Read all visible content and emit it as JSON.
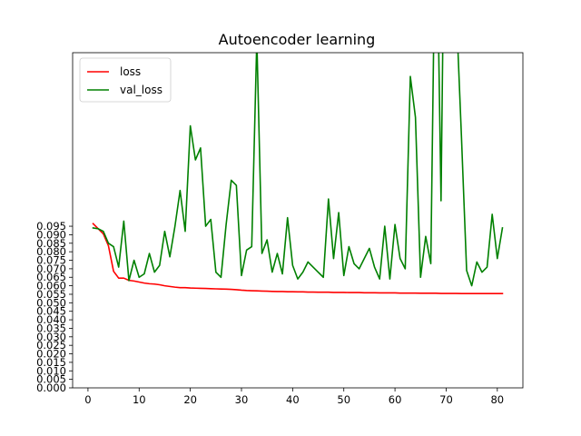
{
  "chart_data": {
    "type": "line",
    "title": "Autoencoder learning",
    "xlabel": "",
    "ylabel": "",
    "xlim": [
      -3,
      85
    ],
    "ylim": [
      0.0,
      0.197
    ],
    "x_ticks": [
      0,
      10,
      20,
      30,
      40,
      50,
      60,
      70,
      80
    ],
    "y_ticks": [
      0.0,
      0.005,
      0.01,
      0.015,
      0.02,
      0.025,
      0.03,
      0.035,
      0.04,
      0.045,
      0.05,
      0.055,
      0.06,
      0.065,
      0.07,
      0.075,
      0.08,
      0.085,
      0.09,
      0.095
    ],
    "y_tick_labels": [
      "0.000",
      "0.005",
      "0.010",
      "0.015",
      "0.020",
      "0.025",
      "0.030",
      "0.035",
      "0.040",
      "0.045",
      "0.050",
      "0.055",
      "0.060",
      "0.065",
      "0.070",
      "0.075",
      "0.080",
      "0.085",
      "0.090",
      "0.095"
    ],
    "grid": false,
    "legend_position": "top-left",
    "x": [
      1,
      2,
      3,
      4,
      5,
      6,
      7,
      8,
      9,
      10,
      11,
      12,
      13,
      14,
      15,
      16,
      17,
      18,
      19,
      20,
      21,
      22,
      23,
      24,
      25,
      26,
      27,
      28,
      29,
      30,
      31,
      32,
      33,
      34,
      35,
      36,
      37,
      38,
      39,
      40,
      41,
      42,
      43,
      44,
      45,
      46,
      47,
      48,
      49,
      50,
      51,
      52,
      53,
      54,
      55,
      56,
      57,
      58,
      59,
      60,
      61,
      62,
      63,
      64,
      65,
      66,
      67,
      68,
      69,
      70,
      71,
      72,
      73,
      74,
      75,
      76,
      77,
      78,
      79,
      80,
      81
    ],
    "series": [
      {
        "name": "loss",
        "color": "#ff0000",
        "values": [
          0.0965,
          0.0935,
          0.0905,
          0.0835,
          0.0685,
          0.0645,
          0.0645,
          0.0632,
          0.0628,
          0.0622,
          0.0616,
          0.0612,
          0.061,
          0.0606,
          0.06,
          0.0596,
          0.0592,
          0.0589,
          0.0589,
          0.0587,
          0.0586,
          0.0585,
          0.0584,
          0.0583,
          0.0582,
          0.0581,
          0.058,
          0.0579,
          0.0577,
          0.0574,
          0.0572,
          0.0571,
          0.057,
          0.0569,
          0.0568,
          0.0567,
          0.0566,
          0.0566,
          0.0565,
          0.0565,
          0.0564,
          0.0564,
          0.0563,
          0.0563,
          0.0562,
          0.0562,
          0.0562,
          0.0561,
          0.0561,
          0.0561,
          0.056,
          0.056,
          0.056,
          0.0559,
          0.0559,
          0.0559,
          0.0558,
          0.0558,
          0.0558,
          0.0558,
          0.0557,
          0.0557,
          0.0557,
          0.0557,
          0.0556,
          0.0556,
          0.0556,
          0.0556,
          0.0555,
          0.0555,
          0.0555,
          0.0555,
          0.0554,
          0.0554,
          0.0554,
          0.0554,
          0.0554,
          0.0554,
          0.0554,
          0.0554,
          0.0554
        ]
      },
      {
        "name": "val_loss",
        "color": "#008000",
        "values": [
          0.094,
          0.0935,
          0.092,
          0.085,
          0.083,
          0.071,
          0.098,
          0.063,
          0.075,
          0.065,
          0.067,
          0.079,
          0.068,
          0.072,
          0.092,
          0.077,
          0.095,
          0.116,
          0.092,
          0.154,
          0.134,
          0.141,
          0.095,
          0.099,
          0.068,
          0.065,
          0.096,
          0.122,
          0.119,
          0.066,
          0.081,
          0.083,
          0.205,
          0.079,
          0.087,
          0.068,
          0.079,
          0.067,
          0.1,
          0.072,
          0.064,
          0.068,
          0.074,
          0.071,
          0.068,
          0.065,
          0.111,
          0.076,
          0.103,
          0.066,
          0.083,
          0.073,
          0.07,
          0.076,
          0.082,
          0.071,
          0.064,
          0.095,
          0.064,
          0.096,
          0.076,
          0.07,
          0.183,
          0.159,
          0.065,
          0.089,
          0.073,
          0.305,
          0.11,
          0.379,
          0.203,
          0.221,
          0.147,
          0.069,
          0.06,
          0.074,
          0.068,
          0.071,
          0.102,
          0.076,
          0.094
        ]
      }
    ]
  }
}
